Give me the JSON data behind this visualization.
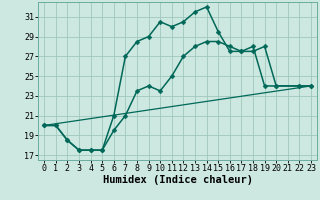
{
  "xlabel": "Humidex (Indice chaleur)",
  "xlim": [
    -0.5,
    23.5
  ],
  "ylim": [
    16.5,
    32.5
  ],
  "yticks": [
    17,
    19,
    21,
    23,
    25,
    27,
    29,
    31
  ],
  "xticks": [
    0,
    1,
    2,
    3,
    4,
    5,
    6,
    7,
    8,
    9,
    10,
    11,
    12,
    13,
    14,
    15,
    16,
    17,
    18,
    19,
    20,
    21,
    22,
    23
  ],
  "bg_color": "#cde8e0",
  "grid_color": "#a0c8be",
  "line_color": "#006858",
  "lines": [
    {
      "x": [
        0,
        1,
        2,
        3,
        4,
        5,
        6,
        7,
        8,
        9,
        10,
        11,
        12,
        13,
        14,
        15,
        16,
        17,
        18,
        19,
        20,
        22,
        23
      ],
      "y": [
        20.0,
        20.0,
        18.5,
        17.5,
        17.5,
        17.5,
        21.0,
        27.0,
        28.5,
        29.0,
        30.5,
        30.0,
        30.5,
        31.5,
        32.0,
        29.5,
        27.5,
        27.5,
        28.0,
        24.0,
        24.0,
        24.0,
        24.0
      ],
      "marker": "D",
      "ms": 2.5,
      "lw": 1.1
    },
    {
      "x": [
        0,
        1,
        2,
        3,
        4,
        5,
        6,
        7,
        8,
        9,
        10,
        11,
        12,
        13,
        14,
        15,
        16,
        17,
        18,
        19,
        20,
        22,
        23
      ],
      "y": [
        20.0,
        20.0,
        18.5,
        17.5,
        17.5,
        17.5,
        19.5,
        21.0,
        23.5,
        24.0,
        23.5,
        25.0,
        27.0,
        28.0,
        28.5,
        28.5,
        28.0,
        27.5,
        27.5,
        28.0,
        24.0,
        24.0,
        24.0
      ],
      "marker": "D",
      "ms": 2.5,
      "lw": 1.1
    },
    {
      "x": [
        0,
        23
      ],
      "y": [
        20.0,
        24.0
      ],
      "marker": null,
      "ms": 0,
      "lw": 0.9
    }
  ],
  "font_family": "monospace",
  "tick_fontsize": 6.0,
  "label_fontsize": 7.5
}
